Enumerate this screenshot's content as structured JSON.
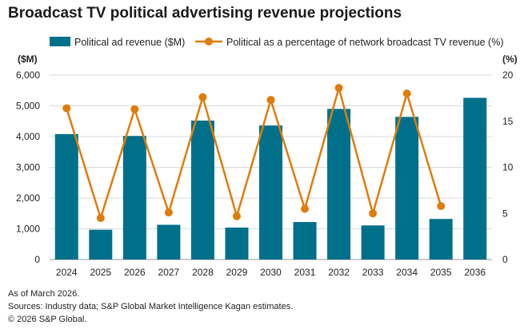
{
  "chart_data": {
    "type": "bar+line",
    "title": "Broadcast TV political advertising revenue projections",
    "categories": [
      "2024",
      "2025",
      "2026",
      "2027",
      "2028",
      "2029",
      "2030",
      "2031",
      "2032",
      "2033",
      "2034",
      "2035",
      "2036"
    ],
    "series": [
      {
        "name": "Political ad revenue ($M)",
        "type": "bar",
        "axis": "left",
        "color": "#00708A",
        "values": [
          4080,
          970,
          4020,
          1130,
          4520,
          1040,
          4360,
          1220,
          4900,
          1110,
          4640,
          1320,
          5260
        ]
      },
      {
        "name": "Political as a percentage of network broadcast TV revenue (%)",
        "type": "line",
        "axis": "right",
        "color": "#E07C0A",
        "values": [
          16.4,
          4.5,
          16.3,
          5.1,
          17.6,
          4.7,
          17.3,
          5.5,
          18.6,
          5.0,
          18.0,
          5.8,
          null
        ]
      }
    ],
    "left_axis": {
      "label": "($M)",
      "range": [
        0,
        6000
      ],
      "ticks": [
        "0",
        "1,000",
        "2,000",
        "3,000",
        "4,000",
        "5,000",
        "6,000"
      ]
    },
    "right_axis": {
      "label": "(%)",
      "range": [
        0,
        20
      ],
      "ticks": [
        "0",
        "5",
        "10",
        "15",
        "20"
      ]
    },
    "grid": true,
    "legend": "top"
  },
  "footer": {
    "note": "As of March 2026.",
    "sources": "Sources: Industry data; S&P Global Market Intelligence Kagan estimates.",
    "copyright": "© 2026 S&P Global."
  }
}
